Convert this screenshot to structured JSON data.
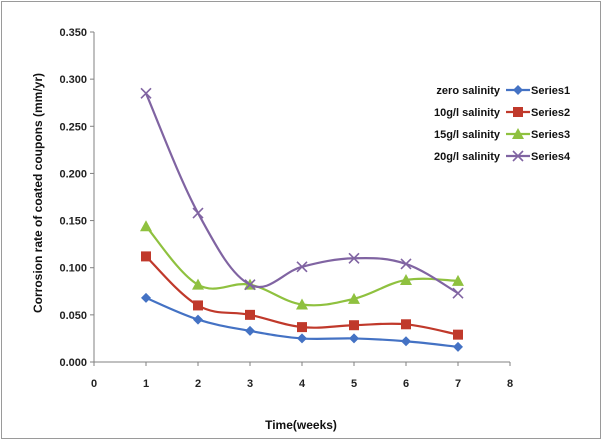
{
  "chart_data": {
    "type": "line",
    "xlabel": "Time(weeks)",
    "ylabel": "Corrosion rate of coated coupons  (mm/yr)",
    "x_ticks": [
      0,
      1,
      2,
      3,
      4,
      5,
      6,
      7,
      8
    ],
    "xlim": [
      0,
      8
    ],
    "y_ticks": [
      "0.000",
      "0.050",
      "0.100",
      "0.150",
      "0.200",
      "0.250",
      "0.300",
      "0.350"
    ],
    "ylim": [
      0,
      0.35
    ],
    "grid": false,
    "legend_position": "top-right",
    "x": [
      1,
      2,
      3,
      4,
      5,
      6,
      7
    ],
    "series": [
      {
        "name": "Series1",
        "label": "zero salinity",
        "color": "#4472c4",
        "marker": "diamond",
        "values": [
          0.068,
          0.045,
          0.033,
          0.025,
          0.025,
          0.022,
          0.016
        ]
      },
      {
        "name": "Series2",
        "label": "10g/l salinity",
        "color": "#c0392b",
        "marker": "square",
        "values": [
          0.112,
          0.06,
          0.05,
          0.037,
          0.039,
          0.04,
          0.029
        ]
      },
      {
        "name": "Series3",
        "label": "15g/l salinity",
        "color": "#8fc13f",
        "marker": "triangle",
        "values": [
          0.144,
          0.082,
          0.082,
          0.061,
          0.067,
          0.087,
          0.086
        ]
      },
      {
        "name": "Series4",
        "label": "20g/l salinity",
        "color": "#8064a2",
        "marker": "x",
        "values": [
          0.285,
          0.158,
          0.082,
          0.101,
          0.11,
          0.104,
          0.073
        ]
      }
    ]
  }
}
